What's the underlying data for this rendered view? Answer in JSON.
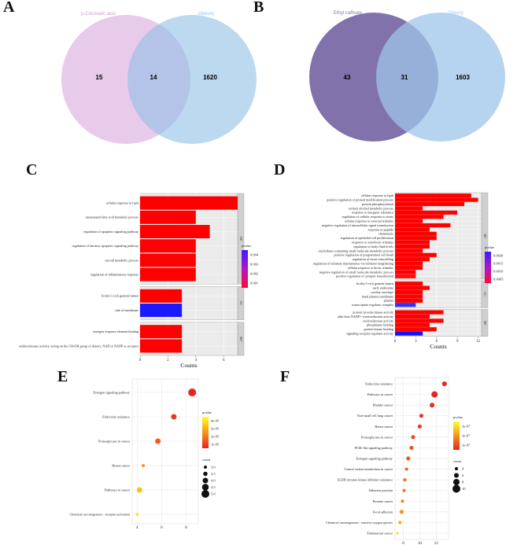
{
  "panels": {
    "A": "A",
    "B": "B",
    "C": "C",
    "D": "D",
    "E": "E",
    "F": "F"
  },
  "venn": [
    {
      "id": "A",
      "left_label": "p-Coumaric acid",
      "right_label": "Obesity",
      "left_only": "15",
      "overlap": "14",
      "right_only": "1620",
      "left_color": "#d9a7de",
      "right_color": "#8fbfe6",
      "overlap_color": "#8f9fd8",
      "left_text_color": "#c99acd",
      "right_text_color": "#9cc4e8"
    },
    {
      "id": "B",
      "left_label": "Ethyl caffeate",
      "right_label": "Obesity",
      "left_only": "43",
      "overlap": "31",
      "right_only": "1603",
      "left_color": "#7b6aa6",
      "right_color": "#9dc6ea",
      "overlap_color": "#6f8cc4",
      "left_text_color": "#8a7ab8",
      "right_text_color": "#a7cbed"
    }
  ],
  "chart_data": [
    {
      "id": "C",
      "type": "bar",
      "orientation": "horizontal",
      "xlabel": "Counts",
      "xticks": [
        0,
        2,
        4,
        6
      ],
      "xlim": [
        0,
        7
      ],
      "legend_title": "pvalue",
      "legend_ticks": [
        "0.004",
        "0.003",
        "0.002",
        "0.001"
      ],
      "groups": [
        {
          "name": "BP",
          "terms": [
            "cellular response to lipid",
            "unsaturated fatty acid metabolic process",
            "regulation of apoptotic signaling pathway",
            "regulation of intrinsic apoptotic signaling pathway",
            "steroid metabolic process",
            "regulation of inflammatory response"
          ],
          "values": [
            7,
            4,
            5,
            4,
            4,
            4
          ],
          "colors": [
            "#ff0000",
            "#ff0000",
            "#ff0000",
            "#ff0000",
            "#ff0000",
            "#ff0000"
          ]
        },
        {
          "name": "CC",
          "terms": [
            "ficolin-1-rich granule lumen",
            "side of membrane"
          ],
          "values": [
            3,
            3
          ],
          "colors": [
            "#ff0000",
            "#1a1aff"
          ]
        },
        {
          "name": "MF",
          "terms": [
            "estrogen response element binding",
            "oxidoreductase activity, acting on the CH-OH group of donors, NAD or NADP as acceptor"
          ],
          "values": [
            3,
            3
          ],
          "colors": [
            "#ff0000",
            "#ff0000"
          ]
        }
      ]
    },
    {
      "id": "D",
      "type": "bar",
      "orientation": "horizontal",
      "xlabel": "Counts",
      "xticks": [
        0,
        3,
        6,
        9,
        12
      ],
      "xlim": [
        0,
        12.5
      ],
      "legend_title": "pvalue",
      "legend_ticks": [
        "0.0020",
        "0.0015",
        "0.0010",
        "0.0005"
      ],
      "groups": [
        {
          "name": "BP",
          "terms": [
            "cellular response to lipid",
            "positive regulation of protein modification process",
            "protein phosphorylation",
            "tertiary alcohol metabolic process",
            "response to inorganic substance",
            "regulation of cellular response to stress",
            "cellular response to external stimulus",
            "negative regulation of intracellular signal transduction",
            "response to peptide",
            "chemotaxis",
            "regulation of epithelial cell proliferation",
            "response to xenobiotic stimulus",
            "regulation of body fluid levels",
            "nucleobase-containing small molecule metabolic process",
            "positive regulation of programmed cell death",
            "regulation of tissue remodeling",
            "regulation of telomere maintenance via telomere lengthening",
            "cellular response to biotic stimulus",
            "negative regulation of small molecule metabolic process",
            "positive regulation of synaptic transmission"
          ],
          "values": [
            11,
            12,
            10,
            4,
            9,
            7,
            4,
            8,
            5,
            6,
            6,
            5,
            5,
            4,
            6,
            5,
            4,
            4,
            3,
            3
          ],
          "colors": [
            "#ff0000",
            "#ff0000",
            "#ff0000",
            "#ff0000",
            "#ff0000",
            "#ff0000",
            "#ff0000",
            "#ff0000",
            "#ff0000",
            "#ff0000",
            "#ff0000",
            "#ff0000",
            "#ff0000",
            "#ff0000",
            "#ff0000",
            "#ff0000",
            "#ff0000",
            "#ff0000",
            "#ff0000",
            "#ff1010"
          ]
        },
        {
          "name": "CC",
          "terms": [
            "ficolin-1-rich granule lumen",
            "early endosome",
            "nuclear envelope",
            "basal plasma membrane",
            "platelet",
            "transcription regulator complex"
          ],
          "values": [
            4,
            5,
            4,
            4,
            4,
            3
          ],
          "colors": [
            "#ff0000",
            "#ff0000",
            "#ff0000",
            "#ff0000",
            "#ff0000",
            "#3030ff"
          ]
        },
        {
          "name": "MF",
          "terms": [
            "protein tyrosine kinase activity",
            "aldo-keto NADP+-oxidoreductase activity",
            "oxidoreductase activity",
            "phosphatase binding",
            "protein kinase binding",
            "signaling receptor regulator activity"
          ],
          "values": [
            7,
            5,
            7,
            5,
            6,
            4
          ],
          "colors": [
            "#ff0000",
            "#ff0000",
            "#ff0000",
            "#ff0000",
            "#ff0000",
            "#1010ff"
          ]
        }
      ]
    },
    {
      "id": "E",
      "type": "scatter",
      "subtype": "dotplot",
      "xticks": [
        4,
        6,
        8
      ],
      "xlim": [
        3.6,
        9
      ],
      "terms": [
        "Estrogen signaling pathway",
        "Endocrine resistance",
        "Proteoglycans in cancer",
        "Breast cancer",
        "Pathways in cancer",
        "Chemical carcinogenesis - receptor activation"
      ],
      "x": [
        8.5,
        7,
        5.7,
        4.5,
        4.2,
        4
      ],
      "count": [
        5,
        4,
        4,
        3,
        4,
        3
      ],
      "colors": [
        "#e8231e",
        "#e93a1f",
        "#ee5a22",
        "#f79520",
        "#f6c51c",
        "#f8e91a"
      ],
      "color_legend_title": "pvalue",
      "color_legend_ticks": [
        "4e-05",
        "3e-05",
        "2e-05",
        "1e-05"
      ],
      "size_legend_title": "count",
      "size_legend_values": [
        "3.0",
        "3.5",
        "4.0",
        "4.5",
        "5.0"
      ]
    },
    {
      "id": "F",
      "type": "scatter",
      "subtype": "dotplot",
      "xticks": [
        8,
        10,
        12
      ],
      "xlim": [
        7,
        13.5
      ],
      "terms": [
        "Endocrine resistance",
        "Pathways in cancer",
        "Bladder cancer",
        "Non-small cell lung cancer",
        "Breast cancer",
        "Proteoglycans in cancer",
        "PI3K-Akt signaling pathway",
        "Estrogen signaling pathway",
        "Central carbon metabolism in cancer",
        "EGFR tyrosine kinase inhibitor resistance",
        "Adherens junction",
        "Prostate cancer",
        "Focal adhesion",
        "Chemical carcinogenesis - reactive oxygen species",
        "Endometrial cancer"
      ],
      "x": [
        13,
        11.8,
        11.5,
        10.2,
        10,
        9.2,
        9,
        8.6,
        8.4,
        8.2,
        8.1,
        7.9,
        7.8,
        7.6,
        7.3
      ],
      "count": [
        6,
        8,
        6,
        5,
        5,
        5,
        5,
        5,
        4,
        4,
        4,
        4,
        5,
        4,
        3
      ],
      "colors": [
        "#e8231e",
        "#e8241e",
        "#e9291e",
        "#ea341f",
        "#ea3a1f",
        "#ec4a21",
        "#ed5221",
        "#ee5a22",
        "#ef6322",
        "#f06a23",
        "#f27523",
        "#f38424",
        "#f49024",
        "#f6a822",
        "#f8e41a"
      ],
      "color_legend_title": "pvalue",
      "color_legend_ticks": [
        "3e-07",
        "2e-07",
        "1e-07"
      ],
      "size_legend_title": "count",
      "size_legend_values": [
        "4",
        "6",
        "8",
        "10"
      ]
    }
  ]
}
